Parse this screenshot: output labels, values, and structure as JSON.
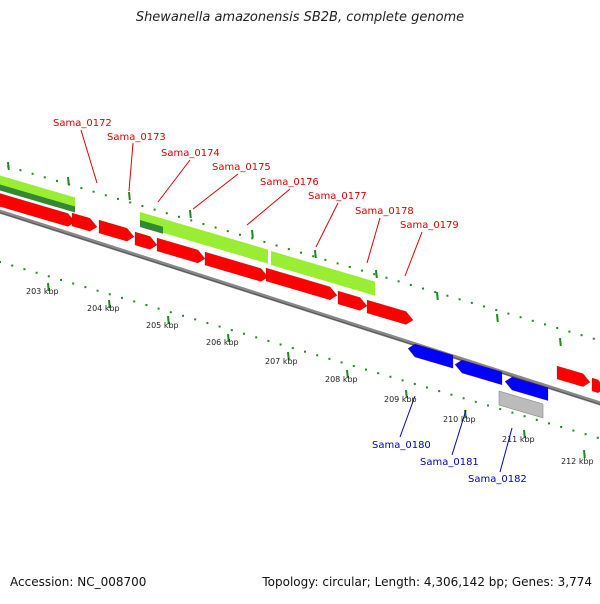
{
  "title": "Shewanella amazonensis SB2B, complete genome",
  "footer": {
    "accession": "Accession: NC_008700",
    "summary": "Topology: circular; Length: 4,306,142 bp; Genes: 3,774"
  },
  "colors": {
    "forward_gene": "#ff0000",
    "reverse_gene": "#0000ff",
    "cds_light": "#99ee33",
    "cds_dark": "#338833",
    "other_feature": "#bbbbbb",
    "tick": "#228822",
    "backbone": "#888888"
  },
  "ruler": {
    "labels": [
      "203 kbp",
      "204 kbp",
      "205 kbp",
      "206 kbp",
      "207 kbp",
      "208 kbp",
      "209 kbp",
      "210 kbp",
      "211 kbp",
      "212 kbp"
    ]
  },
  "gene_labels_top": [
    "Sama_0172",
    "Sama_0173",
    "Sama_0174",
    "Sama_0175",
    "Sama_0176",
    "Sama_0177",
    "Sama_0178",
    "Sama_0179"
  ],
  "gene_labels_bottom": [
    "Sama_0180",
    "Sama_0181",
    "Sama_0182"
  ]
}
